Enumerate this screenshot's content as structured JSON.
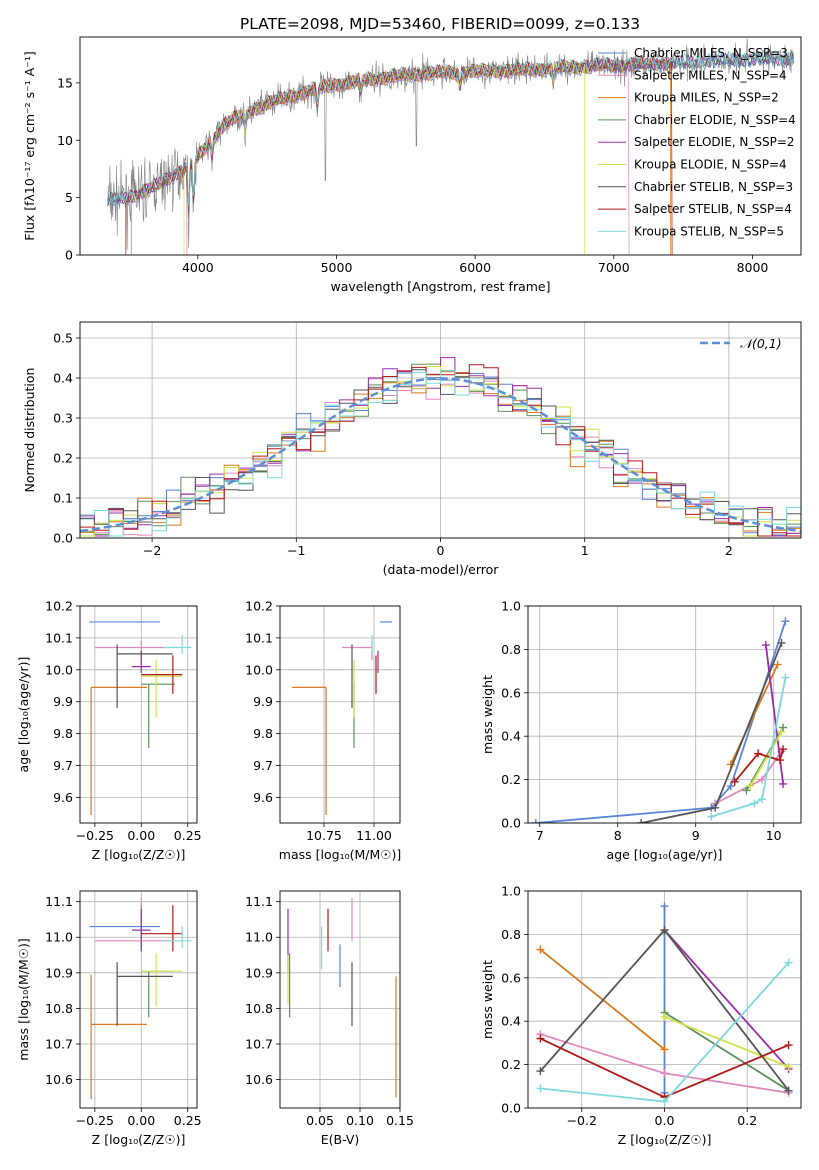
{
  "figure_title": "PLATE=2098, MJD=53460, FIBERID=0099, z=0.133",
  "colors": {
    "chabrier_miles": "#5b84d6",
    "salpeter_miles": "#e088bd",
    "kroupa_miles": "#d97a1e",
    "chabrier_elodie": "#5e8f5e",
    "salpeter_elodie": "#9b2ea8",
    "kroupa_elodie": "#cfe34a",
    "chabrier_stelib": "#555555",
    "salpeter_stelib": "#b01818",
    "kroupa_stelib": "#7fd8dc",
    "data": "#808080",
    "normal": "#5b8fd6"
  },
  "chart_data": [
    {
      "id": "spectrum",
      "type": "line",
      "title": "PLATE=2098, MJD=53460, FIBERID=0099, z=0.133",
      "xlabel": "wavelength [Angstrom, rest frame]",
      "ylabel": "Flux [fλ10⁻¹⁷ erg cm⁻² s⁻¹ A⁻¹]",
      "xlim": [
        3150,
        8350
      ],
      "ylim": [
        0,
        19
      ],
      "xticks": [
        "4000",
        "5000",
        "6000",
        "7000",
        "8000"
      ],
      "yticks": [
        "0",
        "5",
        "10",
        "15"
      ],
      "grid": false,
      "legend_position": "top-right",
      "legend": [
        "Chabrier MILES, N_SSP=3",
        "Salpeter MILES, N_SSP=4",
        "Kroupa MILES, N_SSP=2",
        "Chabrier ELODIE, N_SSP=4",
        "Salpeter ELODIE, N_SSP=2",
        "Kroupa ELODIE, N_SSP=4",
        "Chabrier STELIB, N_SSP=3",
        "Salpeter STELIB, N_SSP=4",
        "Kroupa STELIB, N_SSP=5"
      ],
      "continuum_x": [
        3350,
        3500,
        3700,
        3900,
        4000,
        4200,
        4500,
        4800,
        5000,
        5300,
        5600,
        6000,
        6300,
        6600,
        6900,
        7200,
        7500,
        7800,
        8100,
        8300
      ],
      "continuum_y": [
        4.8,
        5.0,
        6.0,
        7.5,
        8.5,
        11.5,
        13.2,
        14.3,
        14.9,
        15.4,
        15.8,
        16.0,
        16.1,
        16.3,
        16.5,
        16.6,
        16.8,
        17.0,
        17.1,
        17.1
      ],
      "model_cutoffs": {
        "kroupa_miles": [
          3520,
          7410
        ],
        "kroupa_elodie": [
          3900,
          6790
        ],
        "salpeter_miles": [
          3920,
          7110
        ],
        "salpeter_stelib": [
          3480,
          7420
        ]
      }
    },
    {
      "id": "residuals",
      "type": "step",
      "xlabel": "(data-model)/error",
      "ylabel": "Normed distribution",
      "xlim": [
        -2.5,
        2.5
      ],
      "ylim": [
        0,
        0.54
      ],
      "xticks": [
        "-2",
        "-1",
        "0",
        "1",
        "2"
      ],
      "yticks": [
        "0.0",
        "0.1",
        "0.2",
        "0.3",
        "0.4",
        "0.5"
      ],
      "grid": true,
      "legend_position": "top-right",
      "legend": [
        "𝒩(0,1)"
      ],
      "bin_width": 0.1
    },
    {
      "id": "age_vs_z",
      "type": "errorbar",
      "xlabel": "Z [log₁₀(Z/Z☉)]",
      "ylabel": "age  [log₁₀(age/yr)]",
      "xlim": [
        -0.33,
        0.3
      ],
      "ylim": [
        9.52,
        10.2
      ],
      "xticks": [
        "-0.25",
        "0.00",
        "0.25"
      ],
      "yticks": [
        "9.6",
        "9.7",
        "9.8",
        "9.9",
        "10.0",
        "10.1",
        "10.2"
      ],
      "grid": true,
      "points": [
        {
          "model": "chabrier_miles",
          "x": 0.0,
          "xerr": [
            0.28,
            0.1
          ],
          "y": 10.15,
          "yerr": [
            0.0,
            0.0
          ]
        },
        {
          "model": "salpeter_miles",
          "x": 0.0,
          "xerr": [
            0.25,
            0.15
          ],
          "y": 10.07,
          "yerr": [
            0.04,
            0.02
          ]
        },
        {
          "model": "kroupa_miles",
          "x": -0.27,
          "xerr": [
            0.0,
            0.3
          ],
          "y": 9.945,
          "yerr": [
            0.4,
            0.0
          ]
        },
        {
          "model": "chabrier_elodie",
          "x": 0.04,
          "xerr": [
            0.04,
            0.14
          ],
          "y": 9.955,
          "yerr": [
            0.2,
            0.0
          ]
        },
        {
          "model": "salpeter_elodie",
          "x": 0.0,
          "xerr": [
            0.05,
            0.05
          ],
          "y": 10.01,
          "yerr": [
            0.02,
            0.05
          ]
        },
        {
          "model": "kroupa_elodie",
          "x": 0.08,
          "xerr": [
            0.08,
            0.14
          ],
          "y": 9.98,
          "yerr": [
            0.13,
            0.05
          ]
        },
        {
          "model": "chabrier_stelib",
          "x": -0.13,
          "xerr": [
            0.0,
            0.3
          ],
          "y": 10.05,
          "yerr": [
            0.17,
            0.03
          ]
        },
        {
          "model": "salpeter_stelib",
          "x": 0.17,
          "xerr": [
            0.17,
            0.05
          ],
          "y": 9.985,
          "yerr": [
            0.06,
            0.06
          ]
        },
        {
          "model": "kroupa_stelib",
          "x": 0.22,
          "xerr": [
            0.1,
            0.05
          ],
          "y": 10.07,
          "yerr": [
            0.02,
            0.04
          ]
        }
      ]
    },
    {
      "id": "age_vs_mass",
      "type": "errorbar",
      "xlabel": "mass [log₁₀(M/M☉)]",
      "ylabel": "",
      "xlim": [
        10.53,
        11.13
      ],
      "ylim": [
        9.52,
        10.2
      ],
      "xticks": [
        "10.75",
        "11.00"
      ],
      "yticks": [
        "9.6",
        "9.7",
        "9.8",
        "9.9",
        "10.0",
        "10.1",
        "10.2"
      ],
      "grid": true,
      "points": [
        {
          "model": "chabrier_miles",
          "x": 11.03,
          "xerr": [
            0.0,
            0.06
          ],
          "y": 10.15,
          "yerr": [
            0.0,
            0.0
          ]
        },
        {
          "model": "salpeter_miles",
          "x": 10.99,
          "xerr": [
            0.15,
            0.0
          ],
          "y": 10.07,
          "yerr": [
            0.04,
            0.02
          ]
        },
        {
          "model": "kroupa_miles",
          "x": 10.76,
          "xerr": [
            0.17,
            0.0
          ],
          "y": 9.945,
          "yerr": [
            0.4,
            0.0
          ]
        },
        {
          "model": "chabrier_elodie",
          "x": 10.9,
          "xerr": [
            0.0,
            0.0
          ],
          "y": 9.955,
          "yerr": [
            0.2,
            0.0
          ]
        },
        {
          "model": "salpeter_elodie",
          "x": 11.02,
          "xerr": [
            0.0,
            0.0
          ],
          "y": 10.01,
          "yerr": [
            0.02,
            0.05
          ]
        },
        {
          "model": "kroupa_elodie",
          "x": 10.9,
          "xerr": [
            0.0,
            0.0
          ],
          "y": 9.98,
          "yerr": [
            0.13,
            0.05
          ]
        },
        {
          "model": "chabrier_stelib",
          "x": 10.89,
          "xerr": [
            0.0,
            0.0
          ],
          "y": 10.05,
          "yerr": [
            0.17,
            0.03
          ]
        },
        {
          "model": "salpeter_stelib",
          "x": 11.01,
          "xerr": [
            0.0,
            0.0
          ],
          "y": 9.985,
          "yerr": [
            0.06,
            0.06
          ]
        },
        {
          "model": "kroupa_stelib",
          "x": 10.99,
          "xerr": [
            0.0,
            0.0
          ],
          "y": 10.07,
          "yerr": [
            0.02,
            0.04
          ]
        }
      ]
    },
    {
      "id": "mass_vs_z",
      "type": "errorbar",
      "xlabel": "Z [log₁₀(Z/Z☉)]",
      "ylabel": "mass [log₁₀(M/M☉)]",
      "xlim": [
        -0.33,
        0.3
      ],
      "ylim": [
        10.52,
        11.13
      ],
      "xticks": [
        "-0.25",
        "0.00",
        "0.25"
      ],
      "yticks": [
        "10.6",
        "10.7",
        "10.8",
        "10.9",
        "11.0",
        "11.1"
      ],
      "grid": true,
      "points": [
        {
          "model": "chabrier_miles",
          "x": 0.0,
          "xerr": [
            0.28,
            0.1
          ],
          "y": 11.03,
          "yerr": [
            0.06,
            0.06
          ]
        },
        {
          "model": "salpeter_miles",
          "x": 0.0,
          "xerr": [
            0.25,
            0.15
          ],
          "y": 10.99,
          "yerr": [
            0.0,
            0.12
          ]
        },
        {
          "model": "kroupa_miles",
          "x": -0.27,
          "xerr": [
            0.0,
            0.3
          ],
          "y": 10.755,
          "yerr": [
            0.21,
            0.14
          ]
        },
        {
          "model": "chabrier_elodie",
          "x": 0.04,
          "xerr": [
            0.04,
            0.14
          ],
          "y": 10.905,
          "yerr": [
            0.13,
            0.0
          ]
        },
        {
          "model": "salpeter_elodie",
          "x": 0.0,
          "xerr": [
            0.05,
            0.05
          ],
          "y": 11.02,
          "yerr": [
            0.06,
            0.06
          ]
        },
        {
          "model": "kroupa_elodie",
          "x": 0.08,
          "xerr": [
            0.08,
            0.14
          ],
          "y": 10.905,
          "yerr": [
            0.1,
            0.05
          ]
        },
        {
          "model": "chabrier_stelib",
          "x": -0.13,
          "xerr": [
            0.0,
            0.3
          ],
          "y": 10.89,
          "yerr": [
            0.14,
            0.04
          ]
        },
        {
          "model": "salpeter_stelib",
          "x": 0.17,
          "xerr": [
            0.17,
            0.05
          ],
          "y": 11.01,
          "yerr": [
            0.05,
            0.08
          ]
        },
        {
          "model": "kroupa_stelib",
          "x": 0.22,
          "xerr": [
            0.1,
            0.05
          ],
          "y": 10.99,
          "yerr": [
            0.02,
            0.04
          ]
        }
      ]
    },
    {
      "id": "mass_vs_ebv",
      "type": "errorbar",
      "xlabel": "E(B-V)",
      "ylabel": "",
      "xlim": [
        0.0,
        0.15
      ],
      "ylim": [
        10.52,
        11.13
      ],
      "xticks": [
        "0.05",
        "0.10",
        "0.15"
      ],
      "yticks": [
        "10.6",
        "10.7",
        "10.8",
        "10.9",
        "11.0",
        "11.1"
      ],
      "grid": true,
      "points": [
        {
          "model": "chabrier_miles",
          "x": 0.075,
          "xerr": [
            0,
            0
          ],
          "y": 10.98,
          "yerr": [
            0.12,
            0.0
          ]
        },
        {
          "model": "salpeter_miles",
          "x": 0.09,
          "xerr": [
            0,
            0
          ],
          "y": 10.99,
          "yerr": [
            0.0,
            0.12
          ]
        },
        {
          "model": "kroupa_miles",
          "x": 0.145,
          "xerr": [
            0,
            0
          ],
          "y": 10.72,
          "yerr": [
            0.17,
            0.17
          ]
        },
        {
          "model": "chabrier_elodie",
          "x": 0.012,
          "xerr": [
            0,
            0
          ],
          "y": 10.865,
          "yerr": [
            0.09,
            0.09
          ]
        },
        {
          "model": "salpeter_elodie",
          "x": 0.01,
          "xerr": [
            0,
            0
          ],
          "y": 10.99,
          "yerr": [
            0.09,
            0.09
          ]
        },
        {
          "model": "kroupa_elodie",
          "x": 0.01,
          "xerr": [
            0,
            0
          ],
          "y": 10.88,
          "yerr": [
            0.07,
            0.07
          ]
        },
        {
          "model": "chabrier_stelib",
          "x": 0.09,
          "xerr": [
            0,
            0
          ],
          "y": 10.84,
          "yerr": [
            0.09,
            0.09
          ]
        },
        {
          "model": "salpeter_stelib",
          "x": 0.06,
          "xerr": [
            0,
            0
          ],
          "y": 11.02,
          "yerr": [
            0.06,
            0.06
          ]
        },
        {
          "model": "kroupa_stelib",
          "x": 0.052,
          "xerr": [
            0,
            0
          ],
          "y": 10.97,
          "yerr": [
            0.06,
            0.06
          ]
        }
      ]
    },
    {
      "id": "weight_vs_age",
      "type": "line",
      "xlabel": "age  [log₁₀(age/yr)]",
      "ylabel": "mass weight",
      "xlim": [
        6.85,
        10.35
      ],
      "ylim": [
        0,
        1.0
      ],
      "xticks": [
        "7",
        "8",
        "9",
        "10"
      ],
      "yticks": [
        "0.0",
        "0.2",
        "0.4",
        "0.6",
        "0.8",
        "1.0"
      ],
      "grid": true,
      "series": [
        {
          "model": "chabrier_miles",
          "x": [
            6.95,
            9.2,
            9.45,
            10.15
          ],
          "y": [
            0.0,
            0.07,
            0.17,
            0.93
          ]
        },
        {
          "model": "salpeter_miles",
          "x": [
            9.25,
            9.85,
            10.1
          ],
          "y": [
            0.09,
            0.2,
            0.33
          ]
        },
        {
          "model": "kroupa_miles",
          "x": [
            9.45,
            10.05
          ],
          "y": [
            0.27,
            0.73
          ]
        },
        {
          "model": "chabrier_elodie",
          "x": [
            9.65,
            10.12
          ],
          "y": [
            0.15,
            0.44
          ]
        },
        {
          "model": "salpeter_elodie",
          "x": [
            9.9,
            10.12
          ],
          "y": [
            0.82,
            0.18
          ]
        },
        {
          "model": "kroupa_elodie",
          "x": [
            9.7,
            10.1
          ],
          "y": [
            0.17,
            0.42
          ]
        },
        {
          "model": "chabrier_stelib",
          "x": [
            8.3,
            9.25,
            10.1
          ],
          "y": [
            0.0,
            0.07,
            0.83
          ]
        },
        {
          "model": "salpeter_stelib",
          "x": [
            9.5,
            9.8,
            10.08,
            10.12
          ],
          "y": [
            0.19,
            0.32,
            0.29,
            0.34
          ]
        },
        {
          "model": "kroupa_stelib",
          "x": [
            9.2,
            9.75,
            9.85,
            10.15
          ],
          "y": [
            0.03,
            0.09,
            0.11,
            0.67
          ]
        }
      ]
    },
    {
      "id": "weight_vs_z",
      "type": "line",
      "xlabel": "Z [log₁₀(Z/Z☉)]",
      "ylabel": "mass weight",
      "xlim": [
        -0.33,
        0.33
      ],
      "ylim": [
        0,
        1.0
      ],
      "xticks": [
        "-0.2",
        "0.0",
        "0.2"
      ],
      "yticks": [
        "0.0",
        "0.2",
        "0.4",
        "0.6",
        "0.8",
        "1.0"
      ],
      "grid": true,
      "series": [
        {
          "model": "chabrier_miles",
          "x": [
            0.0,
            0.0
          ],
          "y": [
            0.93,
            0.07
          ]
        },
        {
          "model": "salpeter_miles",
          "x": [
            -0.3,
            0.0,
            0.3
          ],
          "y": [
            0.34,
            0.16,
            0.07
          ]
        },
        {
          "model": "kroupa_miles",
          "x": [
            -0.3,
            0.0
          ],
          "y": [
            0.73,
            0.27
          ]
        },
        {
          "model": "chabrier_elodie",
          "x": [
            0.0,
            0.3
          ],
          "y": [
            0.44,
            0.08
          ]
        },
        {
          "model": "salpeter_elodie",
          "x": [
            0.0,
            0.3
          ],
          "y": [
            0.82,
            0.18
          ]
        },
        {
          "model": "kroupa_elodie",
          "x": [
            0.0,
            0.3
          ],
          "y": [
            0.42,
            0.19
          ]
        },
        {
          "model": "chabrier_stelib",
          "x": [
            -0.3,
            0.0,
            0.3
          ],
          "y": [
            0.17,
            0.82,
            0.08
          ]
        },
        {
          "model": "salpeter_stelib",
          "x": [
            -0.3,
            0.0,
            0.3
          ],
          "y": [
            0.32,
            0.05,
            0.29
          ]
        },
        {
          "model": "kroupa_stelib",
          "x": [
            -0.3,
            0.0,
            0.3
          ],
          "y": [
            0.09,
            0.03,
            0.67
          ]
        }
      ]
    }
  ]
}
